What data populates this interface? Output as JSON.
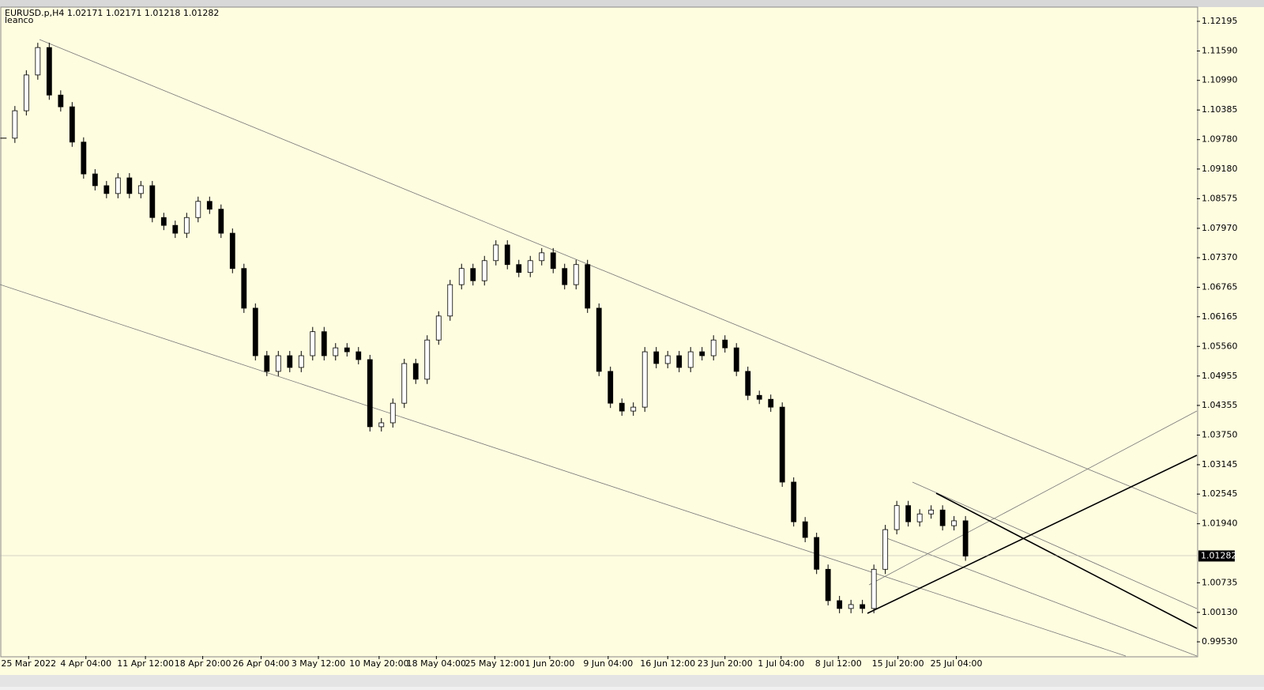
{
  "chart_data": {
    "type": "candlestick",
    "title": "EURUSD.p,H4  1.02171 1.02171 1.01218 1.01282",
    "subtitle": "leanco",
    "series": [
      {
        "name": "EURUSD.p",
        "color": "#000000",
        "values": [
          1.0981,
          1.1037,
          1.111,
          1.1166,
          1.1069,
          1.1045,
          1.0973,
          1.0908,
          1.0884,
          1.0868,
          1.09,
          1.0868,
          1.0884,
          1.0819,
          1.0803,
          1.0787,
          1.0819,
          1.0852,
          1.0836,
          1.0787,
          1.0715,
          1.0634,
          1.0537,
          1.0505,
          1.0537,
          1.0513,
          1.0537,
          1.0586,
          1.0537,
          1.0553,
          1.0545,
          1.0529,
          1.0392,
          1.04,
          1.044,
          1.0521,
          1.0489,
          1.0569,
          1.0618,
          1.0682,
          1.0715,
          1.069,
          1.0731,
          1.0763,
          1.0723,
          1.0707,
          1.0731,
          1.0747,
          1.0715,
          1.0682,
          1.0723,
          1.0634,
          1.0505,
          1.044,
          1.0424,
          1.0432,
          1.0545,
          1.0521,
          1.0537,
          1.0513,
          1.0545,
          1.0537,
          1.0569,
          1.0553,
          1.0505,
          1.0456,
          1.0448,
          1.0432,
          1.0279,
          1.0198,
          1.0166,
          1.0101,
          1.0037,
          1.0021,
          1.0029,
          1.0021,
          1.0101,
          1.0182,
          1.0231,
          1.0198,
          1.0214,
          1.0222,
          1.019,
          1.02,
          1.0128
        ]
      }
    ],
    "current_price": 1.01282,
    "xlim": [
      -0.3,
      104.2
    ],
    "ylim": [
      0.9924,
      1.12469
    ],
    "xticks": [
      {
        "value": 2.2,
        "label": "25 Mar 2022"
      },
      {
        "value": 7.2,
        "label": "4 Apr 04:00"
      },
      {
        "value": 12.4,
        "label": "11 Apr 12:00"
      },
      {
        "value": 17.4,
        "label": "18 Apr 20:00"
      },
      {
        "value": 22.5,
        "label": "26 Apr 04:00"
      },
      {
        "value": 27.5,
        "label": "3 May 12:00"
      },
      {
        "value": 32.8,
        "label": "10 May 20:00"
      },
      {
        "value": 37.8,
        "label": "18 May 04:00"
      },
      {
        "value": 42.9,
        "label": "25 May 12:00"
      },
      {
        "value": 47.7,
        "label": "1 Jun 20:00"
      },
      {
        "value": 52.8,
        "label": "9 Jun 04:00"
      },
      {
        "value": 58,
        "label": "16 Jun 12:00"
      },
      {
        "value": 63,
        "label": "23 Jun 20:00"
      },
      {
        "value": 67.9,
        "label": "1 Jul 04:00"
      },
      {
        "value": 72.9,
        "label": "8 Jul 12:00"
      },
      {
        "value": 78.1,
        "label": "15 Jul 20:00"
      },
      {
        "value": 83.2,
        "label": "25 Jul 04:00"
      }
    ],
    "yticks": [
      {
        "value": 1.12195,
        "label": "1.12195"
      },
      {
        "value": 1.1159,
        "label": "1.11590"
      },
      {
        "value": 1.1099,
        "label": "1.10990"
      },
      {
        "value": 1.10385,
        "label": "1.10385"
      },
      {
        "value": 1.0978,
        "label": "1.09780"
      },
      {
        "value": 1.0918,
        "label": "1.09180"
      },
      {
        "value": 1.08575,
        "label": "1.08575"
      },
      {
        "value": 1.0797,
        "label": "1.07970"
      },
      {
        "value": 1.0737,
        "label": "1.07370"
      },
      {
        "value": 1.06765,
        "label": "1.06765"
      },
      {
        "value": 1.06165,
        "label": "1.06165"
      },
      {
        "value": 1.0556,
        "label": "1.05560"
      },
      {
        "value": 1.04955,
        "label": "1.04955"
      },
      {
        "value": 1.04355,
        "label": "1.04355"
      },
      {
        "value": 1.0375,
        "label": "1.03750"
      },
      {
        "value": 1.03145,
        "label": "1.03145"
      },
      {
        "value": 1.02545,
        "label": "1.02545"
      },
      {
        "value": 1.0194,
        "label": "1.01940"
      },
      {
        "value": 1.00735,
        "label": "1.00735"
      },
      {
        "value": 1.0013,
        "label": "1.00130"
      },
      {
        "value": 0.9953,
        "label": "0.99530"
      }
    ],
    "background": "#fffde0"
  }
}
